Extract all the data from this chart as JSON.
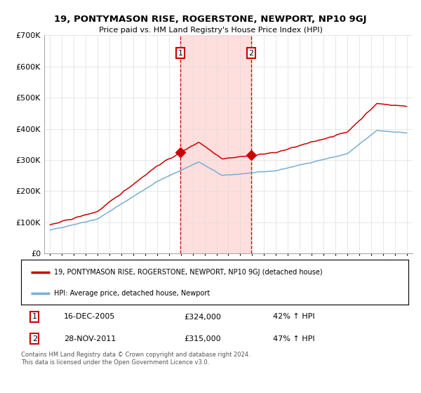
{
  "title": "19, PONTYMASON RISE, ROGERSTONE, NEWPORT, NP10 9GJ",
  "subtitle": "Price paid vs. HM Land Registry's House Price Index (HPI)",
  "sale1_date_label": "16-DEC-2005",
  "sale1_price": 324000,
  "sale1_hpi_pct": "42% ↑ HPI",
  "sale1_year": 2005.96,
  "sale2_date_label": "28-NOV-2011",
  "sale2_price": 315000,
  "sale2_hpi_pct": "47% ↑ HPI",
  "sale2_year": 2011.91,
  "legend_line1": "19, PONTYMASON RISE, ROGERSTONE, NEWPORT, NP10 9GJ (detached house)",
  "legend_line2": "HPI: Average price, detached house, Newport",
  "footnote": "Contains HM Land Registry data © Crown copyright and database right 2024.\nThis data is licensed under the Open Government Licence v3.0.",
  "red_color": "#cc0000",
  "blue_color": "#7aadd4",
  "shade_color": "#ffd6d6",
  "ylim_min": 0,
  "ylim_max": 700000,
  "xlim_min": 1994.5,
  "xlim_max": 2025.5,
  "yticks": [
    0,
    100000,
    200000,
    300000,
    400000,
    500000,
    600000,
    700000
  ],
  "ytick_labels": [
    "£0",
    "£100K",
    "£200K",
    "£300K",
    "£400K",
    "£500K",
    "£600K",
    "£700K"
  ],
  "xticks": [
    1995,
    1996,
    1997,
    1998,
    1999,
    2000,
    2001,
    2002,
    2003,
    2004,
    2005,
    2006,
    2007,
    2008,
    2009,
    2010,
    2011,
    2012,
    2013,
    2014,
    2015,
    2016,
    2017,
    2018,
    2019,
    2020,
    2021,
    2022,
    2023,
    2024,
    2025
  ]
}
